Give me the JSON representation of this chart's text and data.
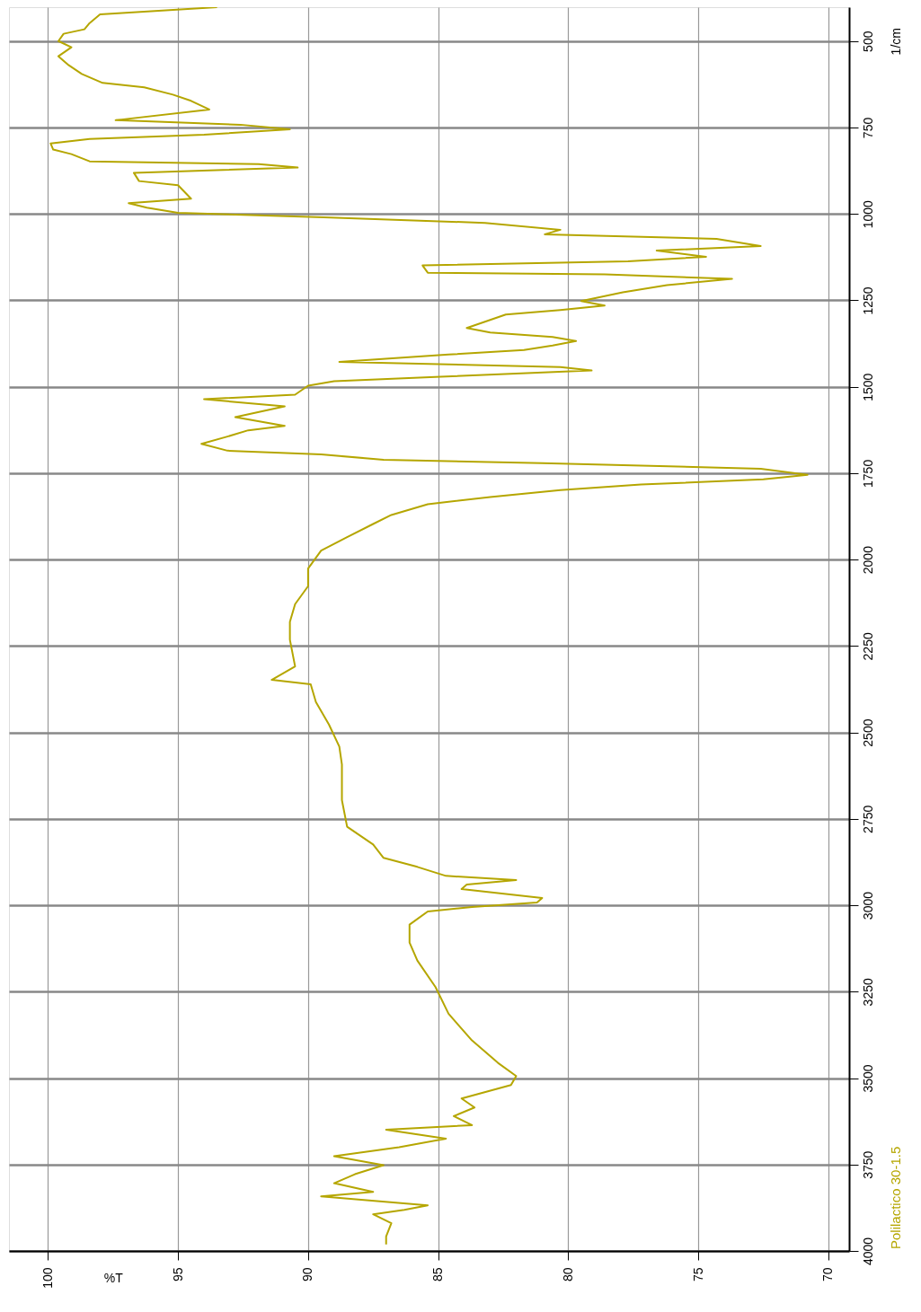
{
  "chart_data": {
    "type": "line",
    "orientation": "horizontal",
    "xlabel": "%T",
    "ylabel": "1/cm",
    "xlim": [
      101.5,
      69.2
    ],
    "ylim": [
      4000,
      402
    ],
    "xticks": [
      100,
      95,
      90,
      85,
      80,
      75,
      70
    ],
    "yticks": [
      500,
      750,
      1000,
      1250,
      1500,
      1750,
      2000,
      2250,
      2500,
      2750,
      3000,
      3250,
      3500,
      3750,
      4000
    ],
    "grid": true,
    "legend": "bottom right",
    "marker": "none",
    "line_style": "solid",
    "series": [
      {
        "name": "Polilactico 30-1.5",
        "color": "#b5a600",
        "x": [
          402,
          423,
          448,
          466,
          479,
          500,
          518,
          544,
          570,
          595,
          621,
          634,
          655,
          673,
          698,
          729,
          742,
          755,
          771,
          783,
          796,
          814,
          827,
          848,
          856,
          866,
          881,
          905,
          917,
          956,
          969,
          982,
          997,
          1010,
          1026,
          1046,
          1059,
          1072,
          1093,
          1106,
          1124,
          1137,
          1149,
          1170,
          1175,
          1188,
          1206,
          1227,
          1252,
          1265,
          1278,
          1291,
          1330,
          1343,
          1356,
          1368,
          1381,
          1394,
          1407,
          1428,
          1443,
          1453,
          1471,
          1484,
          1497,
          1523,
          1536,
          1557,
          1588,
          1613,
          1626,
          1644,
          1665,
          1685,
          1696,
          1711,
          1721,
          1737,
          1755,
          1768,
          1783,
          1799,
          1819,
          1840,
          1871,
          1897,
          1935,
          1974,
          2026,
          2077,
          2129,
          2180,
          2232,
          2309,
          2348,
          2361,
          2412,
          2477,
          2541,
          2593,
          2696,
          2773,
          2824,
          2863,
          2889,
          2915,
          2927,
          2940,
          2953,
          2979,
          2992,
          3005,
          3018,
          3056,
          3108,
          3160,
          3237,
          3314,
          3391,
          3456,
          3494,
          3520,
          3559,
          3585,
          3610,
          3636,
          3649,
          3675,
          3700,
          3726,
          3752,
          3778,
          3804,
          3829,
          3842,
          3868,
          3881,
          3894,
          3920,
          3958,
          3981
        ],
        "values": [
          93.5,
          98.0,
          98.4,
          98.6,
          99.4,
          99.6,
          99.1,
          99.6,
          99.2,
          98.7,
          97.9,
          96.3,
          95.2,
          94.5,
          93.8,
          97.4,
          92.6,
          90.7,
          94.0,
          98.4,
          99.9,
          99.8,
          99.1,
          98.4,
          91.9,
          90.4,
          96.7,
          96.5,
          95.0,
          94.5,
          96.9,
          96.2,
          95.0,
          89.4,
          83.2,
          80.3,
          80.9,
          74.3,
          72.6,
          76.6,
          74.7,
          77.7,
          85.6,
          85.4,
          78.6,
          73.7,
          76.2,
          77.9,
          79.5,
          78.6,
          80.3,
          82.4,
          83.9,
          83.0,
          80.6,
          79.7,
          80.6,
          81.7,
          84.6,
          88.8,
          80.3,
          79.1,
          84.9,
          89.0,
          90.0,
          90.5,
          94.0,
          90.9,
          92.8,
          90.9,
          92.3,
          93.1,
          94.1,
          93.1,
          89.5,
          87.1,
          81.0,
          72.6,
          70.8,
          72.5,
          77.2,
          80.3,
          83.0,
          85.4,
          86.8,
          87.5,
          88.5,
          89.5,
          90.0,
          90.0,
          90.5,
          90.7,
          90.7,
          90.5,
          91.4,
          89.9,
          89.7,
          89.2,
          88.8,
          88.7,
          88.7,
          88.5,
          87.5,
          87.1,
          85.8,
          84.7,
          82.0,
          83.9,
          84.1,
          81.0,
          81.2,
          83.7,
          85.4,
          86.1,
          86.1,
          85.8,
          85.1,
          84.6,
          83.7,
          82.7,
          82.0,
          82.2,
          84.1,
          83.6,
          84.4,
          83.7,
          87.0,
          84.7,
          86.5,
          89.0,
          87.1,
          88.2,
          89.0,
          87.5,
          89.5,
          85.4,
          86.3,
          87.5,
          86.8,
          87.0,
          87.0
        ]
      }
    ]
  }
}
